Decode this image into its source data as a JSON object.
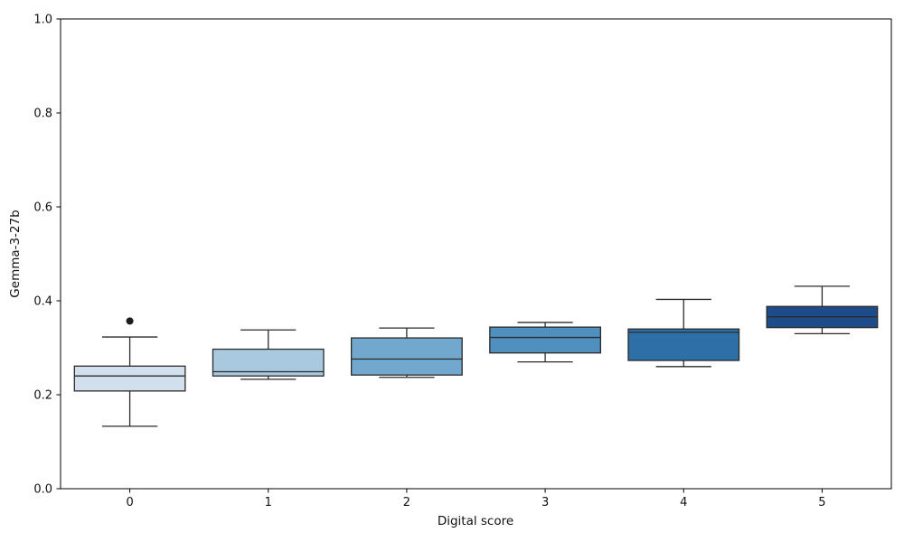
{
  "figure": {
    "background": "#ffffff"
  },
  "chart_data": {
    "type": "box",
    "title": "",
    "xlabel": "Digital score",
    "ylabel": "Gemma-3-27b",
    "ylim": [
      0.0,
      1.0
    ],
    "yticks": [
      0.0,
      0.2,
      0.4,
      0.6,
      0.8,
      1.0
    ],
    "ytick_labels": [
      "0.0",
      "0.2",
      "0.4",
      "0.6",
      "0.8",
      "1.0"
    ],
    "categories": [
      "0",
      "1",
      "2",
      "3",
      "4",
      "5"
    ],
    "grid": false,
    "legend": null,
    "palette_name": "Blues",
    "box_fill_colors": [
      "#d2dfed",
      "#a9c9de",
      "#72a8cd",
      "#4f90bf",
      "#2e6fa7",
      "#1e4c8a"
    ],
    "edge_color": "#2b2b2b",
    "outlier_color": "#1c1c1c",
    "boxes": [
      {
        "category": "0",
        "whisker_low": 0.133,
        "q1": 0.208,
        "median": 0.24,
        "q3": 0.261,
        "whisker_high": 0.323,
        "outliers": [
          0.357
        ]
      },
      {
        "category": "1",
        "whisker_low": 0.233,
        "q1": 0.24,
        "median": 0.249,
        "q3": 0.297,
        "whisker_high": 0.338,
        "outliers": []
      },
      {
        "category": "2",
        "whisker_low": 0.237,
        "q1": 0.242,
        "median": 0.276,
        "q3": 0.321,
        "whisker_high": 0.342,
        "outliers": []
      },
      {
        "category": "3",
        "whisker_low": 0.27,
        "q1": 0.289,
        "median": 0.322,
        "q3": 0.344,
        "whisker_high": 0.354,
        "outliers": []
      },
      {
        "category": "4",
        "whisker_low": 0.26,
        "q1": 0.273,
        "median": 0.333,
        "q3": 0.34,
        "whisker_high": 0.403,
        "outliers": []
      },
      {
        "category": "5",
        "whisker_low": 0.33,
        "q1": 0.343,
        "median": 0.366,
        "q3": 0.388,
        "whisker_high": 0.431,
        "outliers": []
      }
    ]
  }
}
